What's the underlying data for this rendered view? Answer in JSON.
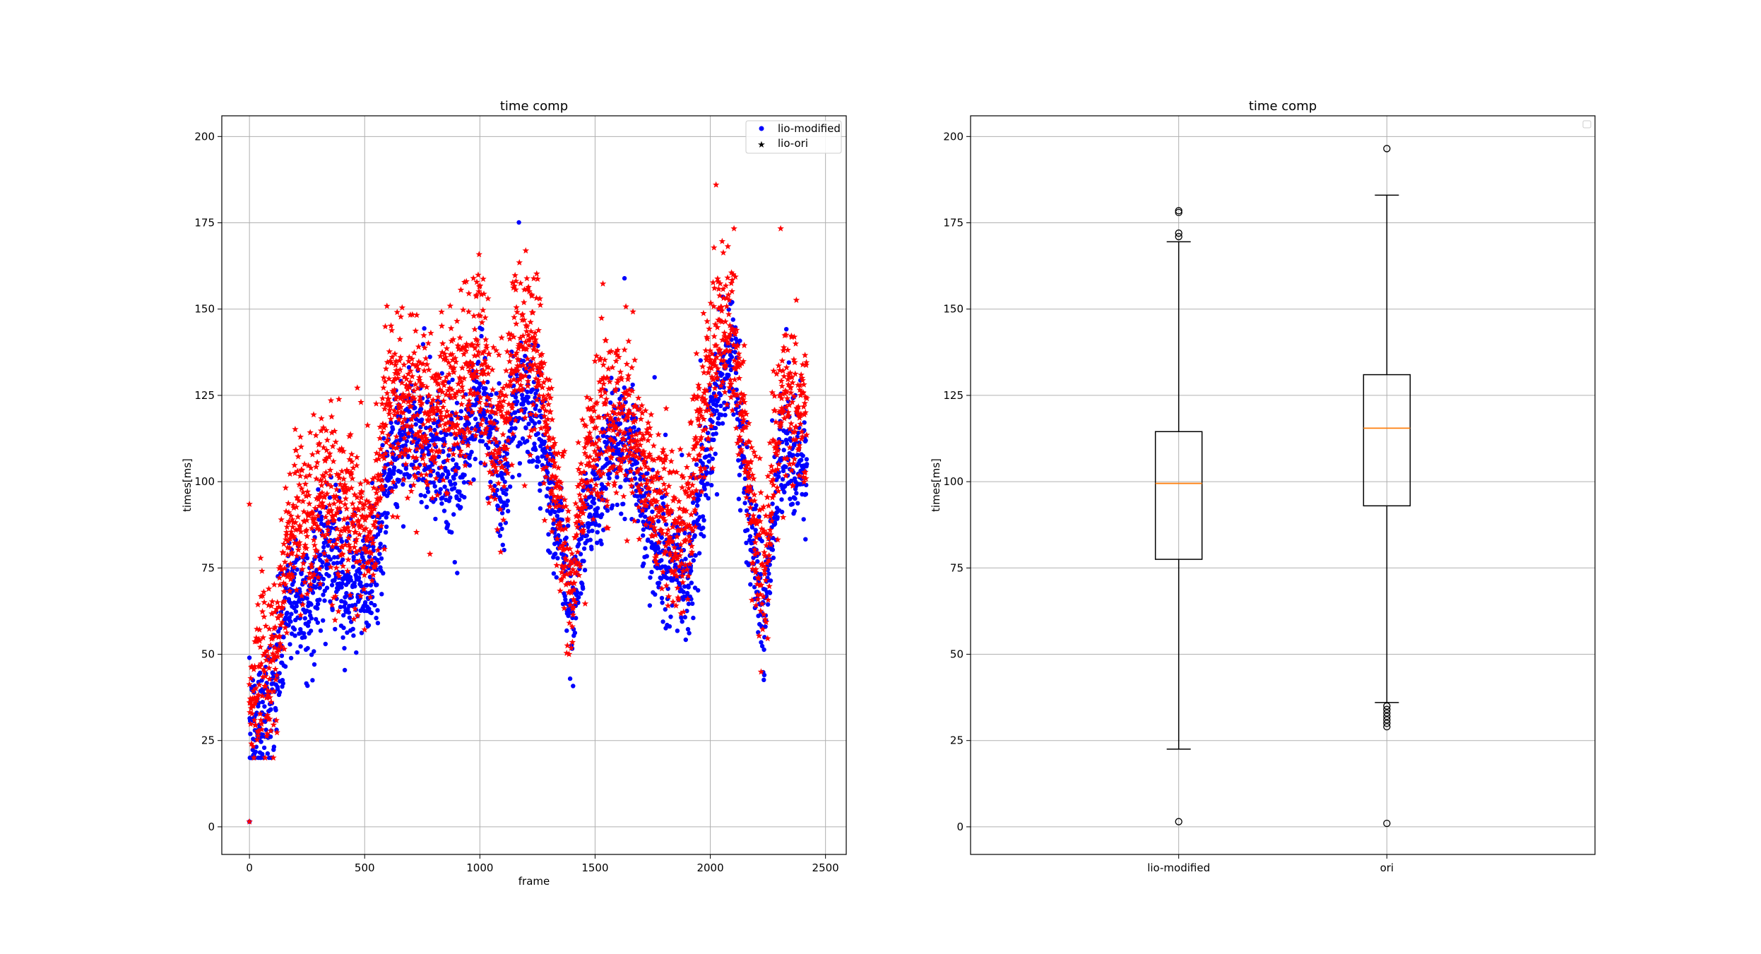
{
  "chart_data": [
    {
      "type": "scatter",
      "title": "time comp",
      "xlabel": "frame",
      "ylabel": "times[ms]",
      "xlim": [
        -120,
        2590
      ],
      "ylim": [
        -8,
        206
      ],
      "xticks": [
        0,
        500,
        1000,
        1500,
        2000,
        2500
      ],
      "yticks": [
        0,
        25,
        50,
        75,
        100,
        125,
        150,
        175,
        200
      ],
      "grid": true,
      "legend_position": "top-right",
      "series": [
        {
          "name": "lio-modified",
          "marker": "dot",
          "color": "#0000ff",
          "trend": [
            [
              0,
              24
            ],
            [
              40,
              32
            ],
            [
              80,
              35
            ],
            [
              120,
              45
            ],
            [
              160,
              62
            ],
            [
              200,
              70
            ],
            [
              260,
              62
            ],
            [
              300,
              73
            ],
            [
              350,
              80
            ],
            [
              400,
              72
            ],
            [
              450,
              70
            ],
            [
              500,
              68
            ],
            [
              560,
              80
            ],
            [
              600,
              105
            ],
            [
              700,
              115
            ],
            [
              800,
              108
            ],
            [
              900,
              100
            ],
            [
              950,
              115
            ],
            [
              1000,
              125
            ],
            [
              1050,
              112
            ],
            [
              1100,
              95
            ],
            [
              1150,
              125
            ],
            [
              1250,
              120
            ],
            [
              1300,
              100
            ],
            [
              1350,
              85
            ],
            [
              1400,
              60
            ],
            [
              1450,
              90
            ],
            [
              1500,
              95
            ],
            [
              1550,
              108
            ],
            [
              1650,
              110
            ],
            [
              1700,
              100
            ],
            [
              1750,
              82
            ],
            [
              1800,
              78
            ],
            [
              1850,
              75
            ],
            [
              1900,
              72
            ],
            [
              1950,
              90
            ],
            [
              2000,
              115
            ],
            [
              2050,
              130
            ],
            [
              2100,
              140
            ],
            [
              2150,
              100
            ],
            [
              2200,
              75
            ],
            [
              2240,
              60
            ],
            [
              2280,
              95
            ],
            [
              2330,
              110
            ],
            [
              2370,
              105
            ],
            [
              2420,
              102
            ]
          ],
          "spread": 9,
          "n_points": 2450
        },
        {
          "name": "lio-ori",
          "marker": "star",
          "color": "#ff0000",
          "trend": [
            [
              0,
              34
            ],
            [
              40,
              45
            ],
            [
              80,
              42
            ],
            [
              120,
              52
            ],
            [
              160,
              78
            ],
            [
              200,
              92
            ],
            [
              260,
              85
            ],
            [
              300,
              98
            ],
            [
              350,
              96
            ],
            [
              400,
              92
            ],
            [
              450,
              92
            ],
            [
              500,
              82
            ],
            [
              560,
              95
            ],
            [
              600,
              125
            ],
            [
              700,
              122
            ],
            [
              800,
              120
            ],
            [
              900,
              125
            ],
            [
              950,
              130
            ],
            [
              1000,
              142
            ],
            [
              1050,
              110
            ],
            [
              1100,
              110
            ],
            [
              1150,
              140
            ],
            [
              1250,
              138
            ],
            [
              1300,
              112
            ],
            [
              1350,
              88
            ],
            [
              1400,
              68
            ],
            [
              1450,
              100
            ],
            [
              1500,
              110
            ],
            [
              1550,
              122
            ],
            [
              1650,
              118
            ],
            [
              1700,
              108
            ],
            [
              1750,
              95
            ],
            [
              1800,
              92
            ],
            [
              1850,
              80
            ],
            [
              1900,
              88
            ],
            [
              1950,
              115
            ],
            [
              2000,
              135
            ],
            [
              2050,
              145
            ],
            [
              2100,
              140
            ],
            [
              2150,
              110
            ],
            [
              2200,
              80
            ],
            [
              2240,
              72
            ],
            [
              2280,
              115
            ],
            [
              2330,
              122
            ],
            [
              2370,
              120
            ],
            [
              2420,
              120
            ]
          ],
          "spread": 12,
          "n_points": 2450
        }
      ]
    },
    {
      "type": "box",
      "title": "time comp",
      "ylabel": "times[ms]",
      "xlabel": "",
      "ylim": [
        -8,
        206
      ],
      "yticks": [
        0,
        25,
        50,
        75,
        100,
        125,
        150,
        175,
        200
      ],
      "grid": true,
      "legend_position": "top-right",
      "categories": [
        "lio-modified",
        "ori"
      ],
      "boxes": [
        {
          "label": "lio-modified",
          "whisker_low": 22.5,
          "q1": 77.5,
          "median": 99.5,
          "q3": 114.5,
          "whisker_high": 169.5,
          "outliers": [
            1.5,
            171,
            172,
            178,
            178.5
          ]
        },
        {
          "label": "ori",
          "whisker_low": 36,
          "q1": 93,
          "median": 115.5,
          "q3": 131,
          "whisker_high": 183,
          "outliers": [
            1,
            29,
            30,
            31,
            32,
            33,
            34,
            35,
            196.5
          ]
        }
      ],
      "median_color": "#ff7f0e"
    }
  ]
}
